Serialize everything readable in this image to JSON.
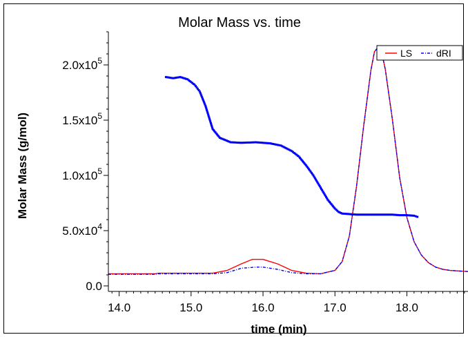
{
  "chart_data": {
    "type": "line",
    "title": "Molar Mass vs. time",
    "xlabel": "time (min)",
    "ylabel": "Molar Mass (g/mol)",
    "xlim": [
      13.85,
      18.85
    ],
    "ylim": [
      -5000,
      230000
    ],
    "x_ticks": [
      14.0,
      15.0,
      16.0,
      17.0,
      18.0
    ],
    "x_tick_labels": [
      "14.0",
      "15.0",
      "16.0",
      "17.0",
      "18.0"
    ],
    "y_ticks": [
      {
        "value": 0,
        "mantissa": "0.0",
        "exponent": ""
      },
      {
        "value": 50000,
        "mantissa": "5.0x10",
        "exponent": "4"
      },
      {
        "value": 100000,
        "mantissa": "1.0x10",
        "exponent": "5"
      },
      {
        "value": 150000,
        "mantissa": "1.5x10",
        "exponent": "5"
      },
      {
        "value": 200000,
        "mantissa": "2.0x10",
        "exponent": "5"
      }
    ],
    "legend": {
      "position": "top-right",
      "entries": [
        "LS",
        "dRI"
      ]
    },
    "series": [
      {
        "name": "LS",
        "color": "#ff0000",
        "style": "solid",
        "x": [
          13.85,
          14.5,
          14.55,
          15.3,
          15.5,
          15.7,
          15.85,
          16.0,
          16.2,
          16.4,
          16.6,
          16.8,
          17.0,
          17.1,
          17.2,
          17.3,
          17.4,
          17.5,
          17.55,
          17.6,
          17.65,
          17.7,
          17.8,
          17.9,
          18.0,
          18.1,
          18.2,
          18.3,
          18.4,
          18.5,
          18.6,
          18.85
        ],
        "y": [
          11000,
          11000,
          11500,
          11500,
          14000,
          20000,
          24000,
          24000,
          20000,
          14000,
          11500,
          11000,
          14000,
          22000,
          45000,
          90000,
          145000,
          195000,
          212000,
          216000,
          211000,
          196000,
          150000,
          98000,
          62000,
          40000,
          28000,
          21000,
          17000,
          15000,
          14000,
          13000
        ]
      },
      {
        "name": "dRI",
        "color": "#0000ff",
        "style": "dash-dot",
        "x": [
          13.85,
          14.5,
          14.55,
          15.3,
          15.5,
          15.7,
          15.9,
          16.0,
          16.2,
          16.4,
          16.6,
          16.8,
          17.0,
          17.1,
          17.2,
          17.3,
          17.4,
          17.5,
          17.55,
          17.6,
          17.65,
          17.7,
          17.8,
          17.9,
          18.0,
          18.1,
          18.2,
          18.3,
          18.4,
          18.5,
          18.6,
          18.85
        ],
        "y": [
          10500,
          10500,
          11000,
          11000,
          12000,
          16000,
          17000,
          17000,
          15000,
          12000,
          11000,
          11000,
          14000,
          22000,
          45000,
          90000,
          145000,
          195000,
          212000,
          216000,
          211000,
          196000,
          150000,
          98000,
          62000,
          40000,
          28000,
          21000,
          17000,
          15000,
          14000,
          13000
        ]
      },
      {
        "name": "",
        "color": "#0000ff",
        "style": "markers",
        "x": [
          14.65,
          14.75,
          14.85,
          14.95,
          15.05,
          15.12,
          15.2,
          15.3,
          15.4,
          15.55,
          15.7,
          15.9,
          16.1,
          16.25,
          16.4,
          16.5,
          16.6,
          16.7,
          16.8,
          16.9,
          17.0,
          17.05,
          17.1,
          17.2,
          17.3,
          17.4,
          17.5,
          17.6,
          17.7,
          17.8,
          17.9,
          18.0,
          18.1,
          18.17
        ],
        "y": [
          189000,
          188000,
          189000,
          187000,
          182000,
          176000,
          163000,
          142000,
          134000,
          130000,
          129500,
          130000,
          129000,
          127000,
          122000,
          117000,
          109000,
          100000,
          89000,
          78000,
          70000,
          67000,
          65500,
          65000,
          64500,
          64500,
          64500,
          64500,
          64500,
          64500,
          64000,
          64000,
          63500,
          62000
        ]
      }
    ]
  }
}
